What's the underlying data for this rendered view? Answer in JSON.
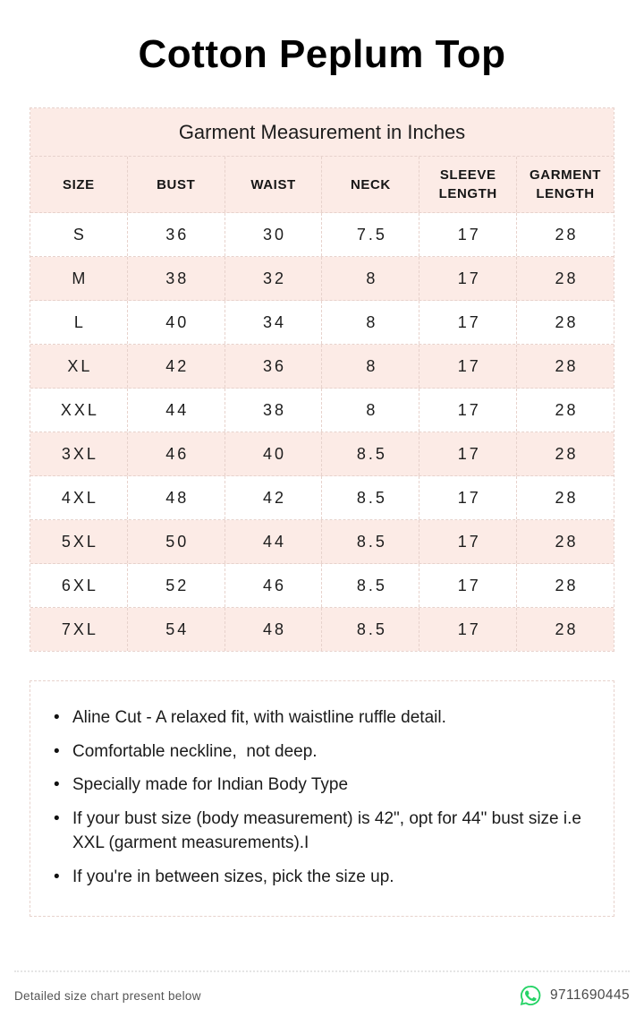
{
  "page": {
    "title": "Cotton Peplum Top"
  },
  "size_table": {
    "caption": "Garment Measurement in Inches",
    "columns": [
      "SIZE",
      "BUST",
      "WAIST",
      "NECK",
      "SLEEVE LENGTH",
      "GARMENT LENGTH"
    ],
    "rows": [
      [
        "S",
        "36",
        "30",
        "7.5",
        "17",
        "28"
      ],
      [
        "M",
        "38",
        "32",
        "8",
        "17",
        "28"
      ],
      [
        "L",
        "40",
        "34",
        "8",
        "17",
        "28"
      ],
      [
        "XL",
        "42",
        "36",
        "8",
        "17",
        "28"
      ],
      [
        "XXL",
        "44",
        "38",
        "8",
        "17",
        "28"
      ],
      [
        "3XL",
        "46",
        "40",
        "8.5",
        "17",
        "28"
      ],
      [
        "4XL",
        "48",
        "42",
        "8.5",
        "17",
        "28"
      ],
      [
        "5XL",
        "50",
        "44",
        "8.5",
        "17",
        "28"
      ],
      [
        "6XL",
        "52",
        "46",
        "8.5",
        "17",
        "28"
      ],
      [
        "7XL",
        "54",
        "48",
        "8.5",
        "17",
        "28"
      ]
    ]
  },
  "notes": {
    "items": [
      "Aline Cut - A relaxed fit, with waistline ruffle detail.",
      "Comfortable neckline,  not deep.",
      "Specially made for Indian Body Type",
      "If your bust size (body measurement) is 42\", opt for 44\" bust size i.e XXL (garment measurements).I",
      "If you're in between sizes, pick the size up."
    ]
  },
  "footer": {
    "note": "Detailed size chart present below",
    "phone": "9711690445",
    "whatsapp_icon": "whatsapp-icon"
  },
  "colors": {
    "accent_pink": "#fcebe6",
    "dashed_border": "#e7d2cc",
    "whatsapp_green": "#25D366",
    "text_dark": "#1a1a1a",
    "footer_text": "#555555"
  }
}
